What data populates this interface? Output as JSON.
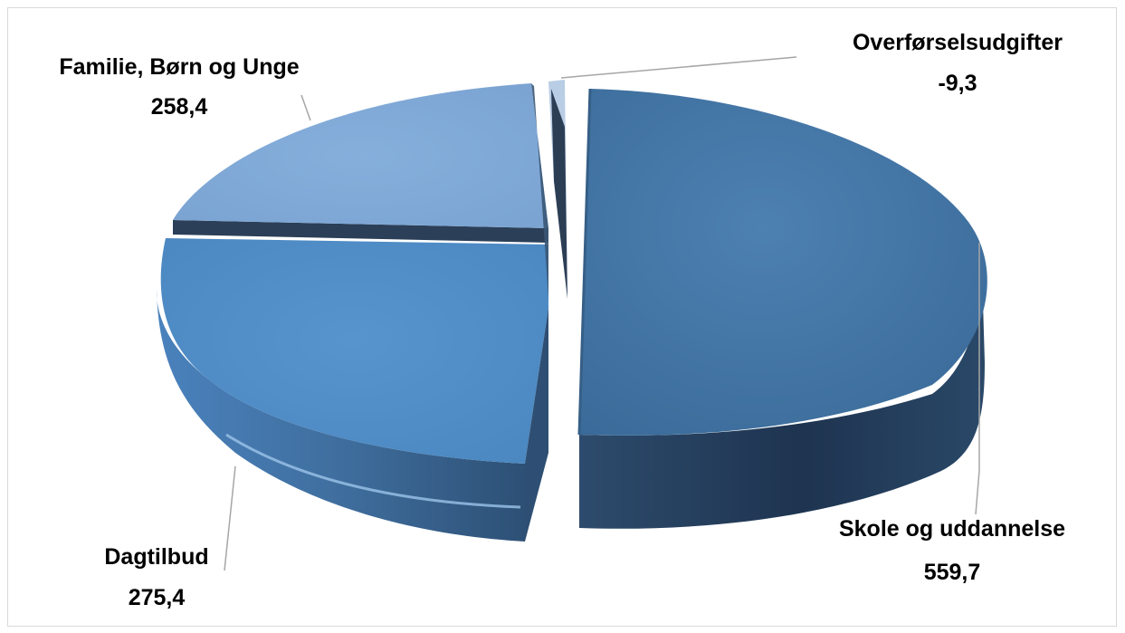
{
  "chart_data": {
    "type": "pie",
    "title": "",
    "slices": [
      {
        "label": "Skole og uddannelse",
        "value_text": "559,7",
        "value": 559.7,
        "color": "#4173A2"
      },
      {
        "label": "Dagtilbud",
        "value_text": "275,4",
        "value": 275.4,
        "color": "#4E8AC6"
      },
      {
        "label": "Familie, Børn og Unge",
        "value_text": "258,4",
        "value": 258.4,
        "color": "#7EA7D6"
      },
      {
        "label": "Overførselsudgifter",
        "value_text": "-9,3",
        "value": -9.3,
        "color": "#B9CDE5"
      }
    ],
    "legend": "none",
    "data_labels": "outside with leader lines",
    "style": "3D exploded pie"
  }
}
